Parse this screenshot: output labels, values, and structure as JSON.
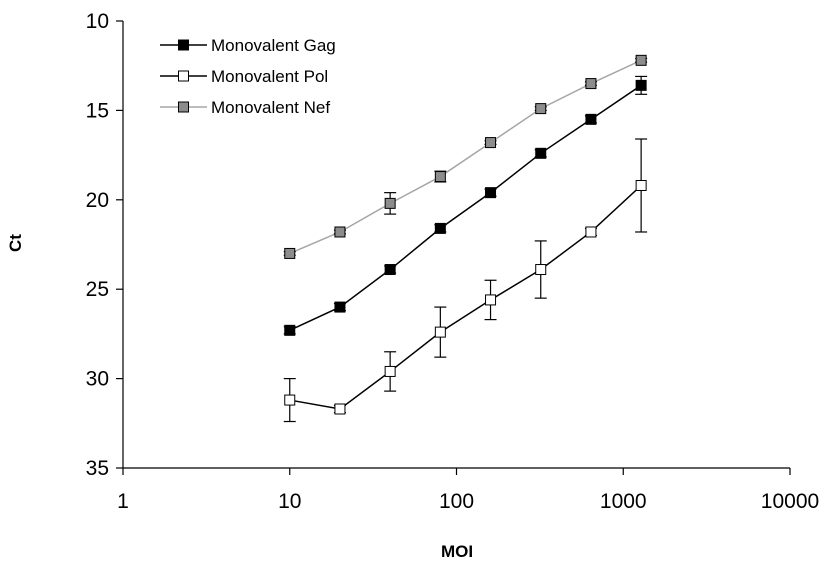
{
  "chart_data": {
    "type": "line",
    "title": "",
    "xlabel": "MOI",
    "ylabel": "Ct",
    "x_scale": "log",
    "xlim": [
      1,
      10000
    ],
    "ylim": [
      10,
      35
    ],
    "y_reversed": true,
    "grid": false,
    "legend_position": "top-left",
    "x_ticks": [
      "1",
      "10",
      "100",
      "1000",
      "10000"
    ],
    "y_ticks": [
      "10",
      "15",
      "20",
      "25",
      "30",
      "35"
    ],
    "x": [
      10,
      20,
      40,
      80,
      160,
      320,
      640,
      1280
    ],
    "series": [
      {
        "name": "Monovalent Gag",
        "marker": "filled-square",
        "line_color": "#000000",
        "marker_fill": "#000000",
        "values": [
          27.3,
          26.0,
          23.9,
          21.6,
          19.6,
          17.4,
          15.5,
          13.6
        ],
        "error": [
          0.2,
          0.2,
          0.2,
          0.2,
          0.2,
          0.2,
          0.2,
          0.5
        ]
      },
      {
        "name": "Monovalent Pol",
        "marker": "open-square",
        "line_color": "#000000",
        "marker_fill": "#ffffff",
        "values": [
          31.2,
          31.7,
          29.6,
          27.4,
          25.6,
          23.9,
          21.8,
          19.2
        ],
        "error": [
          1.2,
          0.2,
          1.1,
          1.4,
          1.1,
          1.6,
          0.2,
          2.6
        ]
      },
      {
        "name": "Monovalent Nef",
        "marker": "gray-square",
        "line_color": "#a6a6a6",
        "marker_fill": "#8c8c8c",
        "values": [
          23.0,
          21.8,
          20.2,
          18.7,
          16.8,
          14.9,
          13.5,
          12.2
        ],
        "error": [
          0.1,
          0.1,
          0.6,
          0.3,
          0.1,
          0.1,
          0.1,
          0.1
        ]
      }
    ]
  }
}
